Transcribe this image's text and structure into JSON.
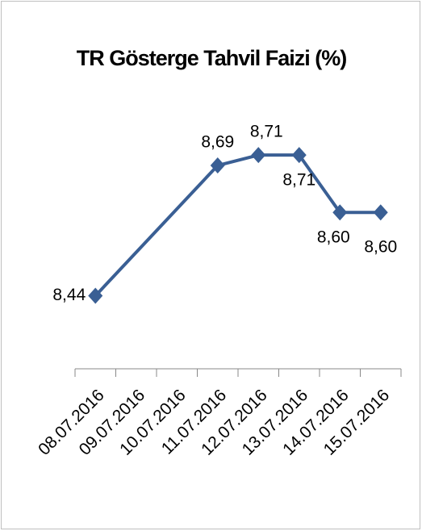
{
  "chart_data": {
    "type": "line",
    "title": "TR Gösterge Tahvil Faizi (%)",
    "categories": [
      "08.07.2016",
      "09.07.2016",
      "10.07.2016",
      "11.07.2016",
      "12.07.2016",
      "13.07.2016",
      "14.07.2016",
      "15.07.2016"
    ],
    "values": [
      8.44,
      null,
      null,
      8.69,
      8.71,
      8.71,
      8.6,
      8.6
    ],
    "value_labels": [
      "8,44",
      null,
      null,
      "8,69",
      "8,71",
      "8,71",
      "8,60",
      "8,60"
    ],
    "color": "#3a5f94",
    "connect_gaps": true,
    "ylim": [
      8.3,
      8.8
    ]
  }
}
